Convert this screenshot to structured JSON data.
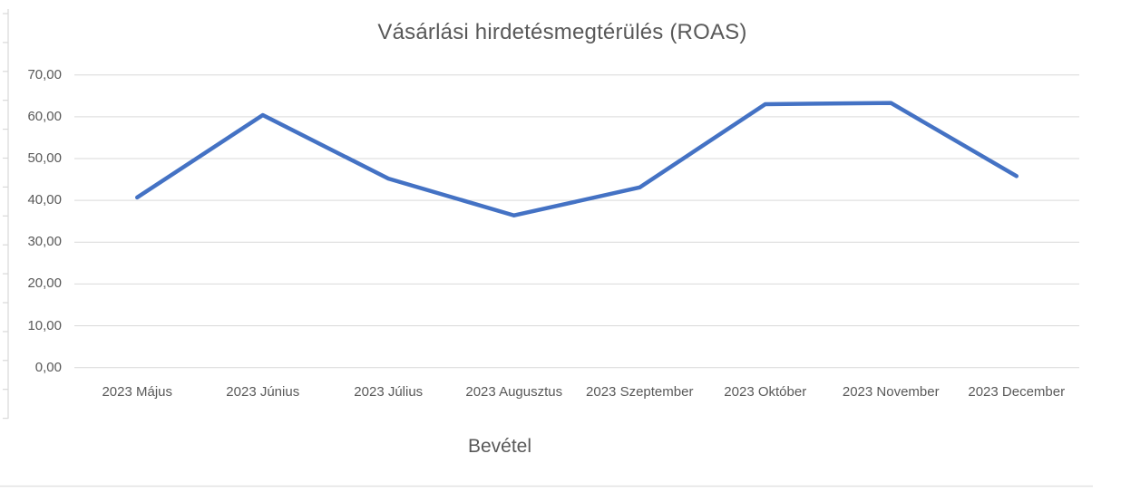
{
  "chart_data": {
    "type": "line",
    "title": "Vásárlási hirdetésmegtérülés (ROAS)",
    "series_label": "Bevétel",
    "categories": [
      "2023 Május",
      "2023 Június",
      "2023 Július",
      "2023 Augusztus",
      "2023 Szeptember",
      "2023 Október",
      "2023 November",
      "2023 December"
    ],
    "series": [
      {
        "name": "Bevétel",
        "values": [
          40.7,
          60.4,
          45.2,
          36.4,
          43.1,
          63.0,
          63.3,
          45.8
        ]
      }
    ],
    "xlabel": "",
    "ylabel": "",
    "ylim": [
      0,
      70
    ],
    "y_axis": {
      "min": 0,
      "max": 70,
      "step": 10,
      "tick_labels": [
        "0,00",
        "10,00",
        "20,00",
        "30,00",
        "40,00",
        "50,00",
        "60,00",
        "70,00"
      ]
    },
    "grid": true,
    "legend_position": "bottom-center",
    "colors": {
      "line": "#4472C4",
      "gridline": "#D9D9D9",
      "axis_line": "#D9D9D9",
      "axis_text": "#595959",
      "title_text": "#595959",
      "divider": "#E2E2E2"
    }
  }
}
